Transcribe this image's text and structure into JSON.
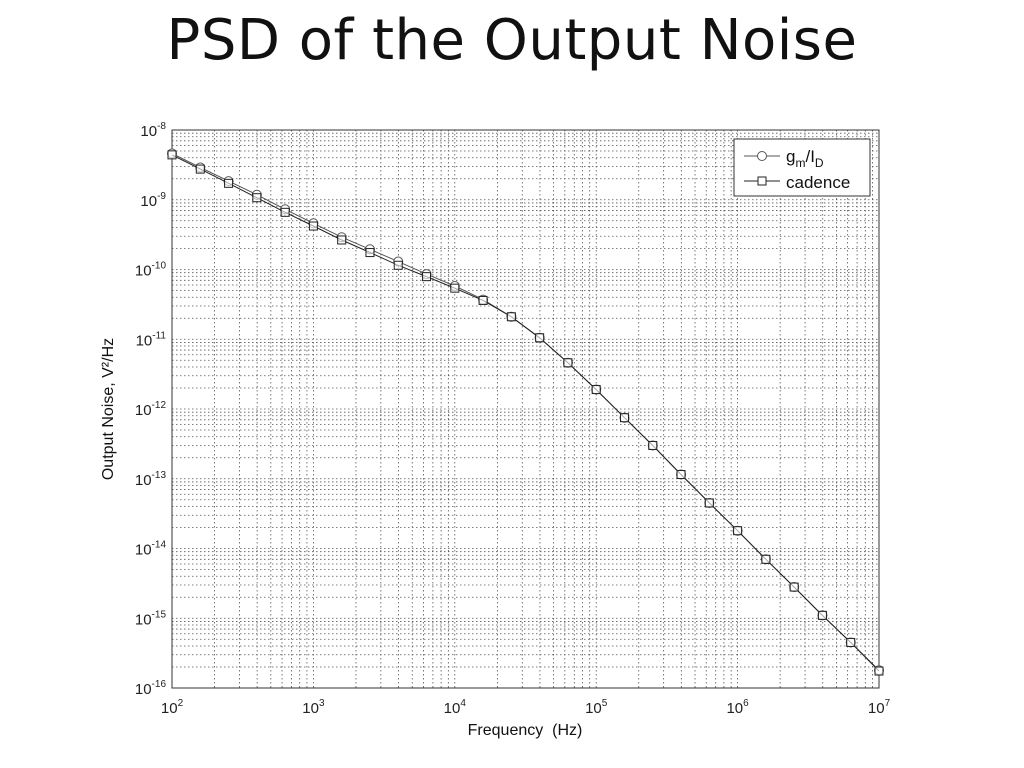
{
  "slide": {
    "title": "PSD of the Output Noise"
  },
  "chart_data": {
    "type": "line",
    "xscale": "log",
    "yscale": "log",
    "xlim": [
      100,
      10000000
    ],
    "ylim": [
      1e-16,
      1e-08
    ],
    "xlabel": "Frequency  (Hz)",
    "ylabel": "Output Noise, V²/Hz",
    "x_ticks": [
      {
        "base": "10",
        "exp": "2"
      },
      {
        "base": "10",
        "exp": "3"
      },
      {
        "base": "10",
        "exp": "4"
      },
      {
        "base": "10",
        "exp": "5"
      },
      {
        "base": "10",
        "exp": "6"
      },
      {
        "base": "10",
        "exp": "7"
      }
    ],
    "y_ticks": [
      {
        "base": "10",
        "exp": "-16"
      },
      {
        "base": "10",
        "exp": "-15"
      },
      {
        "base": "10",
        "exp": "-14"
      },
      {
        "base": "10",
        "exp": "-13"
      },
      {
        "base": "10",
        "exp": "-12"
      },
      {
        "base": "10",
        "exp": "-11"
      },
      {
        "base": "10",
        "exp": "-10"
      },
      {
        "base": "10",
        "exp": "-9"
      },
      {
        "base": "10",
        "exp": "-8"
      }
    ],
    "grid": true,
    "legend_position": "top-right",
    "series": [
      {
        "name": "gm/ID",
        "marker": "circle",
        "color": "#555555",
        "x": [
          100,
          158.5,
          251.2,
          398.1,
          631,
          1000,
          1585,
          2512,
          3981,
          6310,
          10000,
          15850,
          25120,
          39810,
          63100,
          100000,
          158500,
          251200,
          398100,
          631000,
          1000000,
          1585000,
          2512000,
          3981000,
          6310000,
          10000000
        ],
        "y": [
          4.6e-09,
          2.9e-09,
          1.85e-09,
          1.18e-09,
          7.3e-10,
          4.6e-10,
          2.9e-10,
          1.95e-10,
          1.3e-10,
          8.6e-11,
          5.8e-11,
          3.7e-11,
          2.1e-11,
          1.05e-11,
          4.6e-12,
          1.9e-12,
          7.5e-13,
          3e-13,
          1.15e-13,
          4.5e-14,
          1.8e-14,
          7e-15,
          2.8e-15,
          1.1e-15,
          4.5e-16,
          1.8e-16
        ]
      },
      {
        "name": "cadence",
        "marker": "square",
        "color": "#222222",
        "x": [
          100,
          158.5,
          251.2,
          398.1,
          631,
          1000,
          1585,
          2512,
          3981,
          6310,
          10000,
          15850,
          25120,
          39810,
          63100,
          100000,
          158500,
          251200,
          398100,
          631000,
          1000000,
          1585000,
          2512000,
          3981000,
          6310000,
          10000000
        ],
        "y": [
          4.4e-09,
          2.75e-09,
          1.72e-09,
          1.07e-09,
          6.6e-10,
          4.2e-10,
          2.65e-10,
          1.75e-10,
          1.15e-10,
          7.9e-11,
          5.4e-11,
          3.6e-11,
          2.1e-11,
          1.05e-11,
          4.6e-12,
          1.9e-12,
          7.5e-13,
          3e-13,
          1.15e-13,
          4.5e-14,
          1.8e-14,
          7e-15,
          2.8e-15,
          1.1e-15,
          4.5e-16,
          1.75e-16
        ]
      }
    ]
  },
  "legend": {
    "item1": {
      "main": "g",
      "sub1": "m",
      "mid": "/I",
      "sub2": "D"
    },
    "item2": {
      "label": "cadence"
    }
  }
}
